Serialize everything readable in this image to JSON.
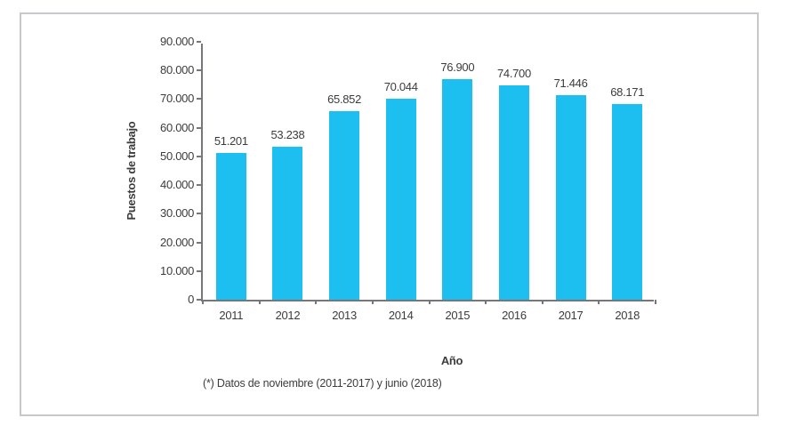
{
  "chart_data": {
    "type": "bar",
    "categories": [
      "2011",
      "2012",
      "2013",
      "2014",
      "2015",
      "2016",
      "2017",
      "2018"
    ],
    "values": [
      51201,
      53238,
      65852,
      70044,
      76900,
      74700,
      71446,
      68171
    ],
    "value_labels": [
      "51.201",
      "53.238",
      "65.852",
      "70.044",
      "76.900",
      "74.700",
      "71.446",
      "68.171"
    ],
    "xlabel": "Año",
    "ylabel": "Puestos de trabajo",
    "ylim": [
      0,
      90000
    ],
    "ytick_step": 10000,
    "ytick_labels": [
      "0",
      "10.000",
      "20.000",
      "30.000",
      "40.000",
      "50.000",
      "60.000",
      "70.000",
      "80.000",
      "90.000"
    ],
    "grid": false,
    "legend": "none",
    "bar_color": "#1dbff0",
    "axis_color": "#77777b",
    "text_color": "#3c3c3e",
    "footnote": "(*) Datos de noviembre (2011-2017) y junio (2018)"
  }
}
